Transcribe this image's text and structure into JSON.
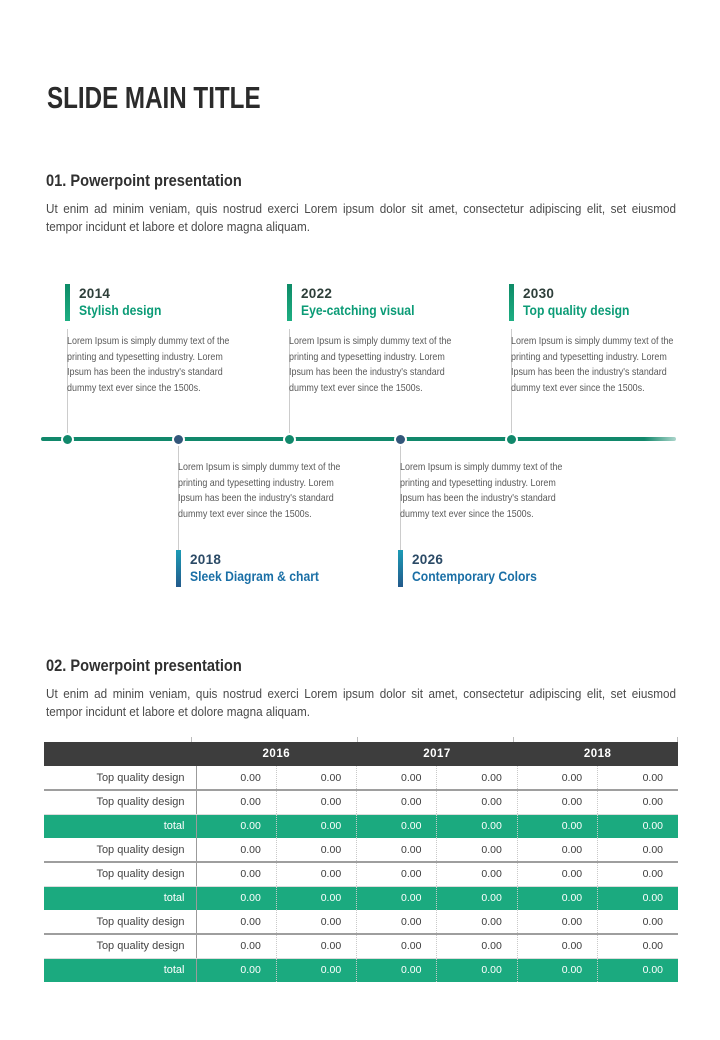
{
  "page": {
    "title": "SLIDE MAIN TITLE"
  },
  "sections": [
    {
      "heading": "01. Powerpoint presentation",
      "body": "Ut enim ad minim veniam, quis nostrud exerci  Lorem ipsum dolor sit amet, consectetur adipiscing elit, set eiusmod tempor incidunt et labore et dolore magna aliquam."
    },
    {
      "heading": "02. Powerpoint presentation",
      "body": "Ut enim ad minim veniam, quis nostrud exerci  Lorem ipsum dolor sit amet, consectetur adipiscing elit, set eiusmod tempor incidunt et labore et dolore magna aliquam."
    }
  ],
  "timeline": {
    "paragraph": "Lorem Ipsum is simply dummy text of the printing and typesetting industry. Lorem Ipsum has been the industry's standard dummy text ever since the 1500s.",
    "items": [
      {
        "year": "2014",
        "title": "Stylish design",
        "position": "top",
        "color": "green"
      },
      {
        "year": "2018",
        "title": "Sleek Diagram & chart",
        "position": "bottom",
        "color": "blue"
      },
      {
        "year": "2022",
        "title": "Eye-catching visual",
        "position": "top",
        "color": "green"
      },
      {
        "year": "2026",
        "title": "Contemporary Colors",
        "position": "bottom",
        "color": "blue"
      },
      {
        "year": "2030",
        "title": "Top quality design",
        "position": "top",
        "color": "green"
      }
    ]
  },
  "table": {
    "year_headers": [
      "2016",
      "2017",
      "2018"
    ],
    "rows": [
      {
        "label": "Top quality design",
        "type": "data",
        "values": [
          "0.00",
          "0.00",
          "0.00",
          "0.00",
          "0.00",
          "0.00"
        ]
      },
      {
        "label": "Top quality design",
        "type": "data",
        "values": [
          "0.00",
          "0.00",
          "0.00",
          "0.00",
          "0.00",
          "0.00"
        ]
      },
      {
        "label": "total",
        "type": "total",
        "values": [
          "0.00",
          "0.00",
          "0.00",
          "0.00",
          "0.00",
          "0.00"
        ]
      },
      {
        "label": "Top quality design",
        "type": "data",
        "values": [
          "0.00",
          "0.00",
          "0.00",
          "0.00",
          "0.00",
          "0.00"
        ]
      },
      {
        "label": "Top quality design",
        "type": "data",
        "values": [
          "0.00",
          "0.00",
          "0.00",
          "0.00",
          "0.00",
          "0.00"
        ]
      },
      {
        "label": "total",
        "type": "total",
        "values": [
          "0.00",
          "0.00",
          "0.00",
          "0.00",
          "0.00",
          "0.00"
        ]
      },
      {
        "label": "Top quality design",
        "type": "data",
        "values": [
          "0.00",
          "0.00",
          "0.00",
          "0.00",
          "0.00",
          "0.00"
        ]
      },
      {
        "label": "Top quality design",
        "type": "data",
        "values": [
          "0.00",
          "0.00",
          "0.00",
          "0.00",
          "0.00",
          "0.00"
        ]
      },
      {
        "label": "total",
        "type": "total",
        "values": [
          "0.00",
          "0.00",
          "0.00",
          "0.00",
          "0.00",
          "0.00"
        ]
      }
    ]
  },
  "colors": {
    "green_line": "#11886B",
    "green_dot": "#11886B",
    "green_title": "#0B9B76",
    "green_table": "#1BAA7F",
    "blue_title": "#1A6FA6",
    "navy": "#2B4A66",
    "navy_dot": "#33567A",
    "bar_green_top": "#0D8A66",
    "bar_green_bot": "#1EAF83",
    "bar_blue_top": "#1C9DB7",
    "bar_blue_bot": "#23588A",
    "head_dark": "#3D3D3D",
    "text_dark": "#2B2B2B",
    "text_body": "#4A4A4A",
    "text_muted": "#595959"
  }
}
